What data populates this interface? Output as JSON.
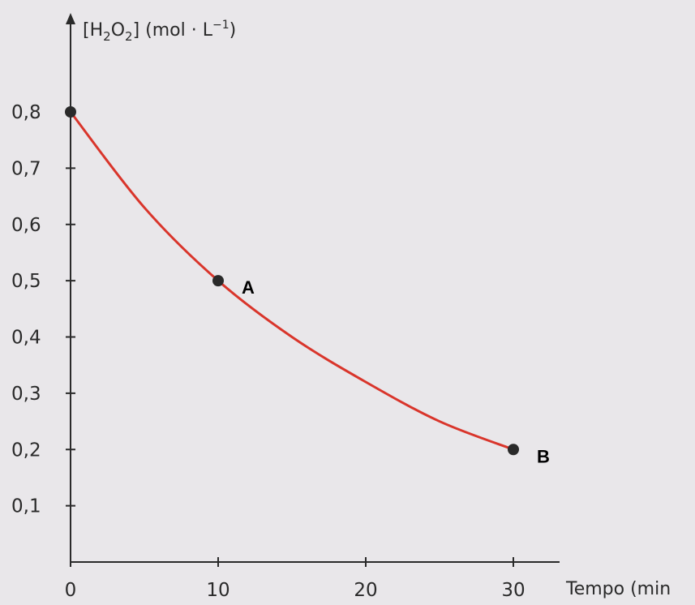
{
  "chart_data": {
    "type": "line",
    "title": "",
    "ylabel": {
      "main": "[H",
      "sub1": "2",
      "mid": "O",
      "sub2": "2",
      "tail": "] (mol · L",
      "sup": "−1",
      "close": ")"
    },
    "xlabel": "Tempo (min",
    "xlim": [
      0,
      35
    ],
    "ylim": [
      0,
      0.9
    ],
    "x_ticks": [
      0,
      10,
      20,
      30
    ],
    "x_tick_labels": [
      "0",
      "10",
      "20",
      "30"
    ],
    "y_ticks": [
      0.1,
      0.2,
      0.3,
      0.4,
      0.5,
      0.6,
      0.7,
      0.8
    ],
    "y_tick_labels": [
      "0,1",
      "0,2",
      "0,3",
      "0,4",
      "0,5",
      "0,6",
      "0,7",
      "0,8"
    ],
    "series": [
      {
        "color": "#d9352b",
        "x": [
          0,
          5,
          10,
          15,
          20,
          25,
          30
        ],
        "y": [
          0.8,
          0.63,
          0.5,
          0.4,
          0.32,
          0.25,
          0.2
        ]
      }
    ],
    "points": [
      {
        "label": "",
        "x": 0,
        "y": 0.8
      },
      {
        "label": "A",
        "x": 10,
        "y": 0.5
      },
      {
        "label": "B",
        "x": 30,
        "y": 0.2
      }
    ],
    "grid": false
  }
}
